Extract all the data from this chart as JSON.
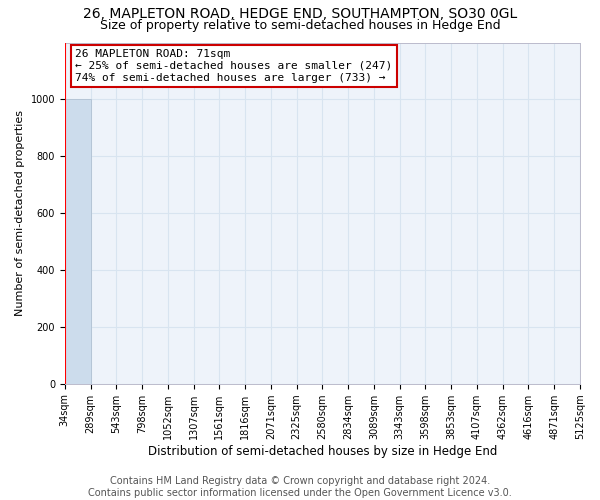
{
  "title": "26, MAPLETON ROAD, HEDGE END, SOUTHAMPTON, SO30 0GL",
  "subtitle": "Size of property relative to semi-detached houses in Hedge End",
  "xlabel": "Distribution of semi-detached houses by size in Hedge End",
  "ylabel": "Number of semi-detached properties",
  "bin_labels": [
    "34sqm",
    "289sqm",
    "543sqm",
    "798sqm",
    "1052sqm",
    "1307sqm",
    "1561sqm",
    "1816sqm",
    "2071sqm",
    "2325sqm",
    "2580sqm",
    "2834sqm",
    "3089sqm",
    "3343sqm",
    "3598sqm",
    "3853sqm",
    "4107sqm",
    "4362sqm",
    "4616sqm",
    "4871sqm",
    "5125sqm"
  ],
  "bar_heights": [
    1000,
    0,
    0,
    0,
    0,
    0,
    0,
    0,
    0,
    0,
    0,
    0,
    0,
    0,
    0,
    0,
    0,
    0,
    0,
    0
  ],
  "bar_color": "#ccdcec",
  "bar_edge_color": "#aabbcc",
  "grid_color": "#d8e4f0",
  "bg_color": "#eef3fa",
  "annotation_line1": "26 MAPLETON ROAD: 71sqm",
  "annotation_line2": "← 25% of semi-detached houses are smaller (247)",
  "annotation_line3": "74% of semi-detached houses are larger (733) →",
  "annotation_box_color": "white",
  "annotation_box_edge_color": "#cc0000",
  "ylim": [
    0,
    1200
  ],
  "yticks": [
    0,
    200,
    400,
    600,
    800,
    1000
  ],
  "footer_line1": "Contains HM Land Registry data © Crown copyright and database right 2024.",
  "footer_line2": "Contains public sector information licensed under the Open Government Licence v3.0.",
  "title_fontsize": 10,
  "subtitle_fontsize": 9,
  "annotation_fontsize": 8,
  "footer_fontsize": 7,
  "ylabel_fontsize": 8,
  "xlabel_fontsize": 8.5,
  "tick_fontsize": 7
}
